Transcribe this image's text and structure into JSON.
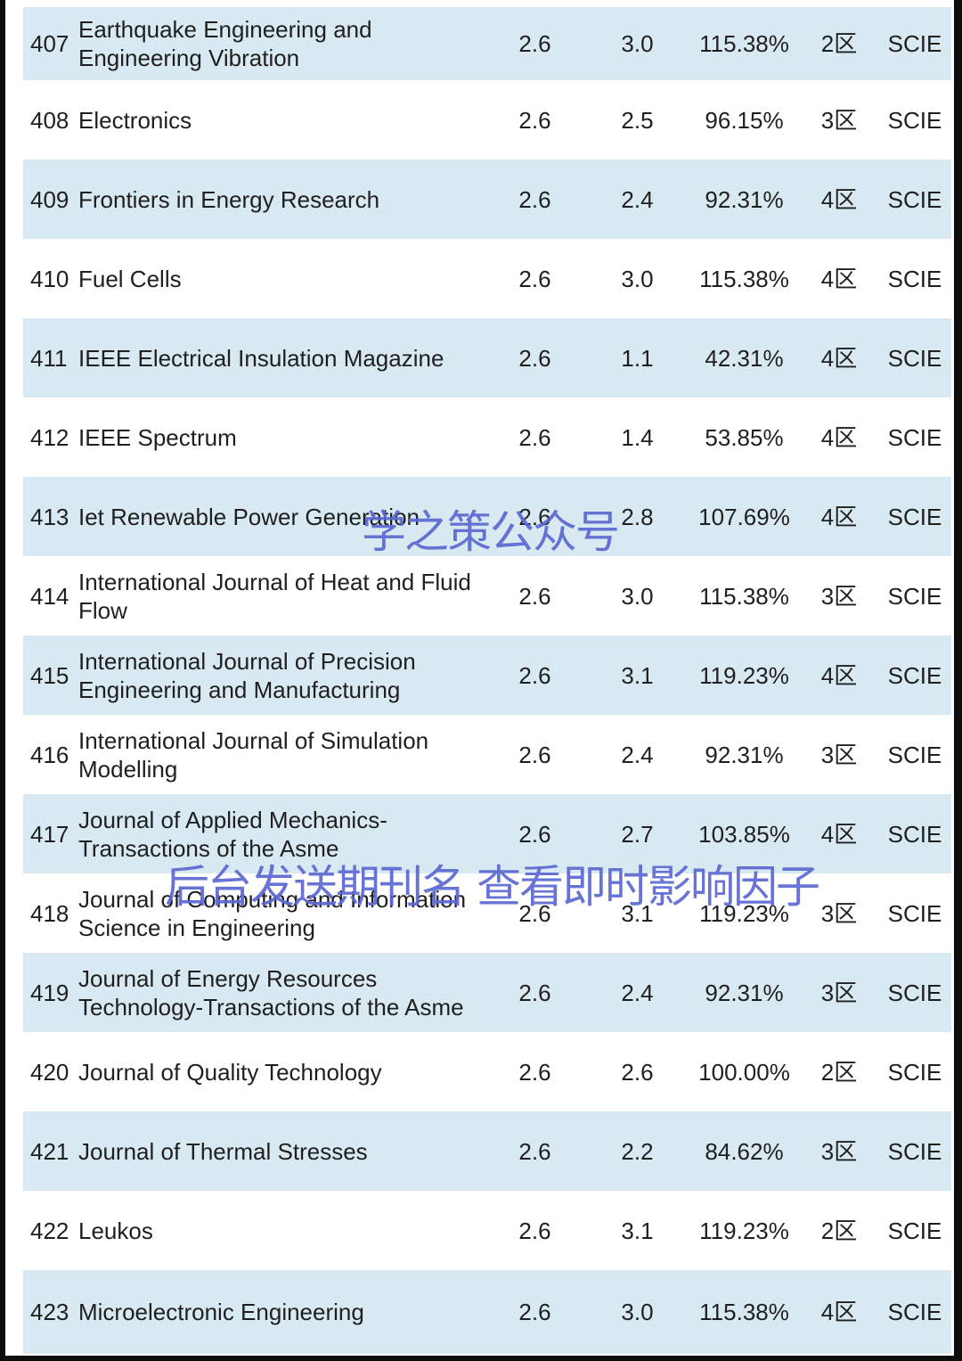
{
  "watermarks": {
    "center": "学之策公众号",
    "bottom": "后台发送期刊名 查看即时影响因子"
  },
  "colors": {
    "row_shaded": "#d8e9f1",
    "frame": "#0d0d0d",
    "text": "#1f1f1f",
    "watermark": "#5b68d2"
  },
  "table": {
    "rows": [
      {
        "rank": "407",
        "name": "Earthquake Engineering and\nEngineering Vibration",
        "if_value": "2.6",
        "if_realtime": "3.0",
        "percent": "115.38%",
        "zone": "2区",
        "index": "SCIE"
      },
      {
        "rank": "408",
        "name": "Electronics",
        "if_value": "2.6",
        "if_realtime": "2.5",
        "percent": "96.15%",
        "zone": "3区",
        "index": "SCIE"
      },
      {
        "rank": "409",
        "name": "Frontiers in Energy Research",
        "if_value": "2.6",
        "if_realtime": "2.4",
        "percent": "92.31%",
        "zone": "4区",
        "index": "SCIE"
      },
      {
        "rank": "410",
        "name": "Fuel Cells",
        "if_value": "2.6",
        "if_realtime": "3.0",
        "percent": "115.38%",
        "zone": "4区",
        "index": "SCIE"
      },
      {
        "rank": "411",
        "name": "IEEE Electrical Insulation Magazine",
        "if_value": "2.6",
        "if_realtime": "1.1",
        "percent": "42.31%",
        "zone": "4区",
        "index": "SCIE"
      },
      {
        "rank": "412",
        "name": "IEEE Spectrum",
        "if_value": "2.6",
        "if_realtime": "1.4",
        "percent": "53.85%",
        "zone": "4区",
        "index": "SCIE"
      },
      {
        "rank": "413",
        "name": "Iet Renewable Power Generation",
        "if_value": "2.6",
        "if_realtime": "2.8",
        "percent": "107.69%",
        "zone": "4区",
        "index": "SCIE"
      },
      {
        "rank": "414",
        "name": "International Journal of Heat and Fluid\nFlow",
        "if_value": "2.6",
        "if_realtime": "3.0",
        "percent": "115.38%",
        "zone": "3区",
        "index": "SCIE"
      },
      {
        "rank": "415",
        "name": "International Journal of Precision\nEngineering and Manufacturing",
        "if_value": "2.6",
        "if_realtime": "3.1",
        "percent": "119.23%",
        "zone": "4区",
        "index": "SCIE"
      },
      {
        "rank": "416",
        "name": "International Journal of Simulation\nModelling",
        "if_value": "2.6",
        "if_realtime": "2.4",
        "percent": "92.31%",
        "zone": "3区",
        "index": "SCIE"
      },
      {
        "rank": "417",
        "name": "Journal of Applied Mechanics-\nTransactions of the Asme",
        "if_value": "2.6",
        "if_realtime": "2.7",
        "percent": "103.85%",
        "zone": "4区",
        "index": "SCIE"
      },
      {
        "rank": "418",
        "name": "Journal of Computing and Information\nScience in Engineering",
        "if_value": "2.6",
        "if_realtime": "3.1",
        "percent": "119.23%",
        "zone": "3区",
        "index": "SCIE"
      },
      {
        "rank": "419",
        "name": "Journal of Energy Resources\nTechnology-Transactions of the Asme",
        "if_value": "2.6",
        "if_realtime": "2.4",
        "percent": "92.31%",
        "zone": "3区",
        "index": "SCIE"
      },
      {
        "rank": "420",
        "name": "Journal of Quality Technology",
        "if_value": "2.6",
        "if_realtime": "2.6",
        "percent": "100.00%",
        "zone": "2区",
        "index": "SCIE"
      },
      {
        "rank": "421",
        "name": "Journal of Thermal Stresses",
        "if_value": "2.6",
        "if_realtime": "2.2",
        "percent": "84.62%",
        "zone": "3区",
        "index": "SCIE"
      },
      {
        "rank": "422",
        "name": "Leukos",
        "if_value": "2.6",
        "if_realtime": "3.1",
        "percent": "119.23%",
        "zone": "2区",
        "index": "SCIE"
      },
      {
        "rank": "423",
        "name": "Microelectronic Engineering",
        "if_value": "2.6",
        "if_realtime": "3.0",
        "percent": "115.38%",
        "zone": "4区",
        "index": "SCIE"
      }
    ]
  }
}
